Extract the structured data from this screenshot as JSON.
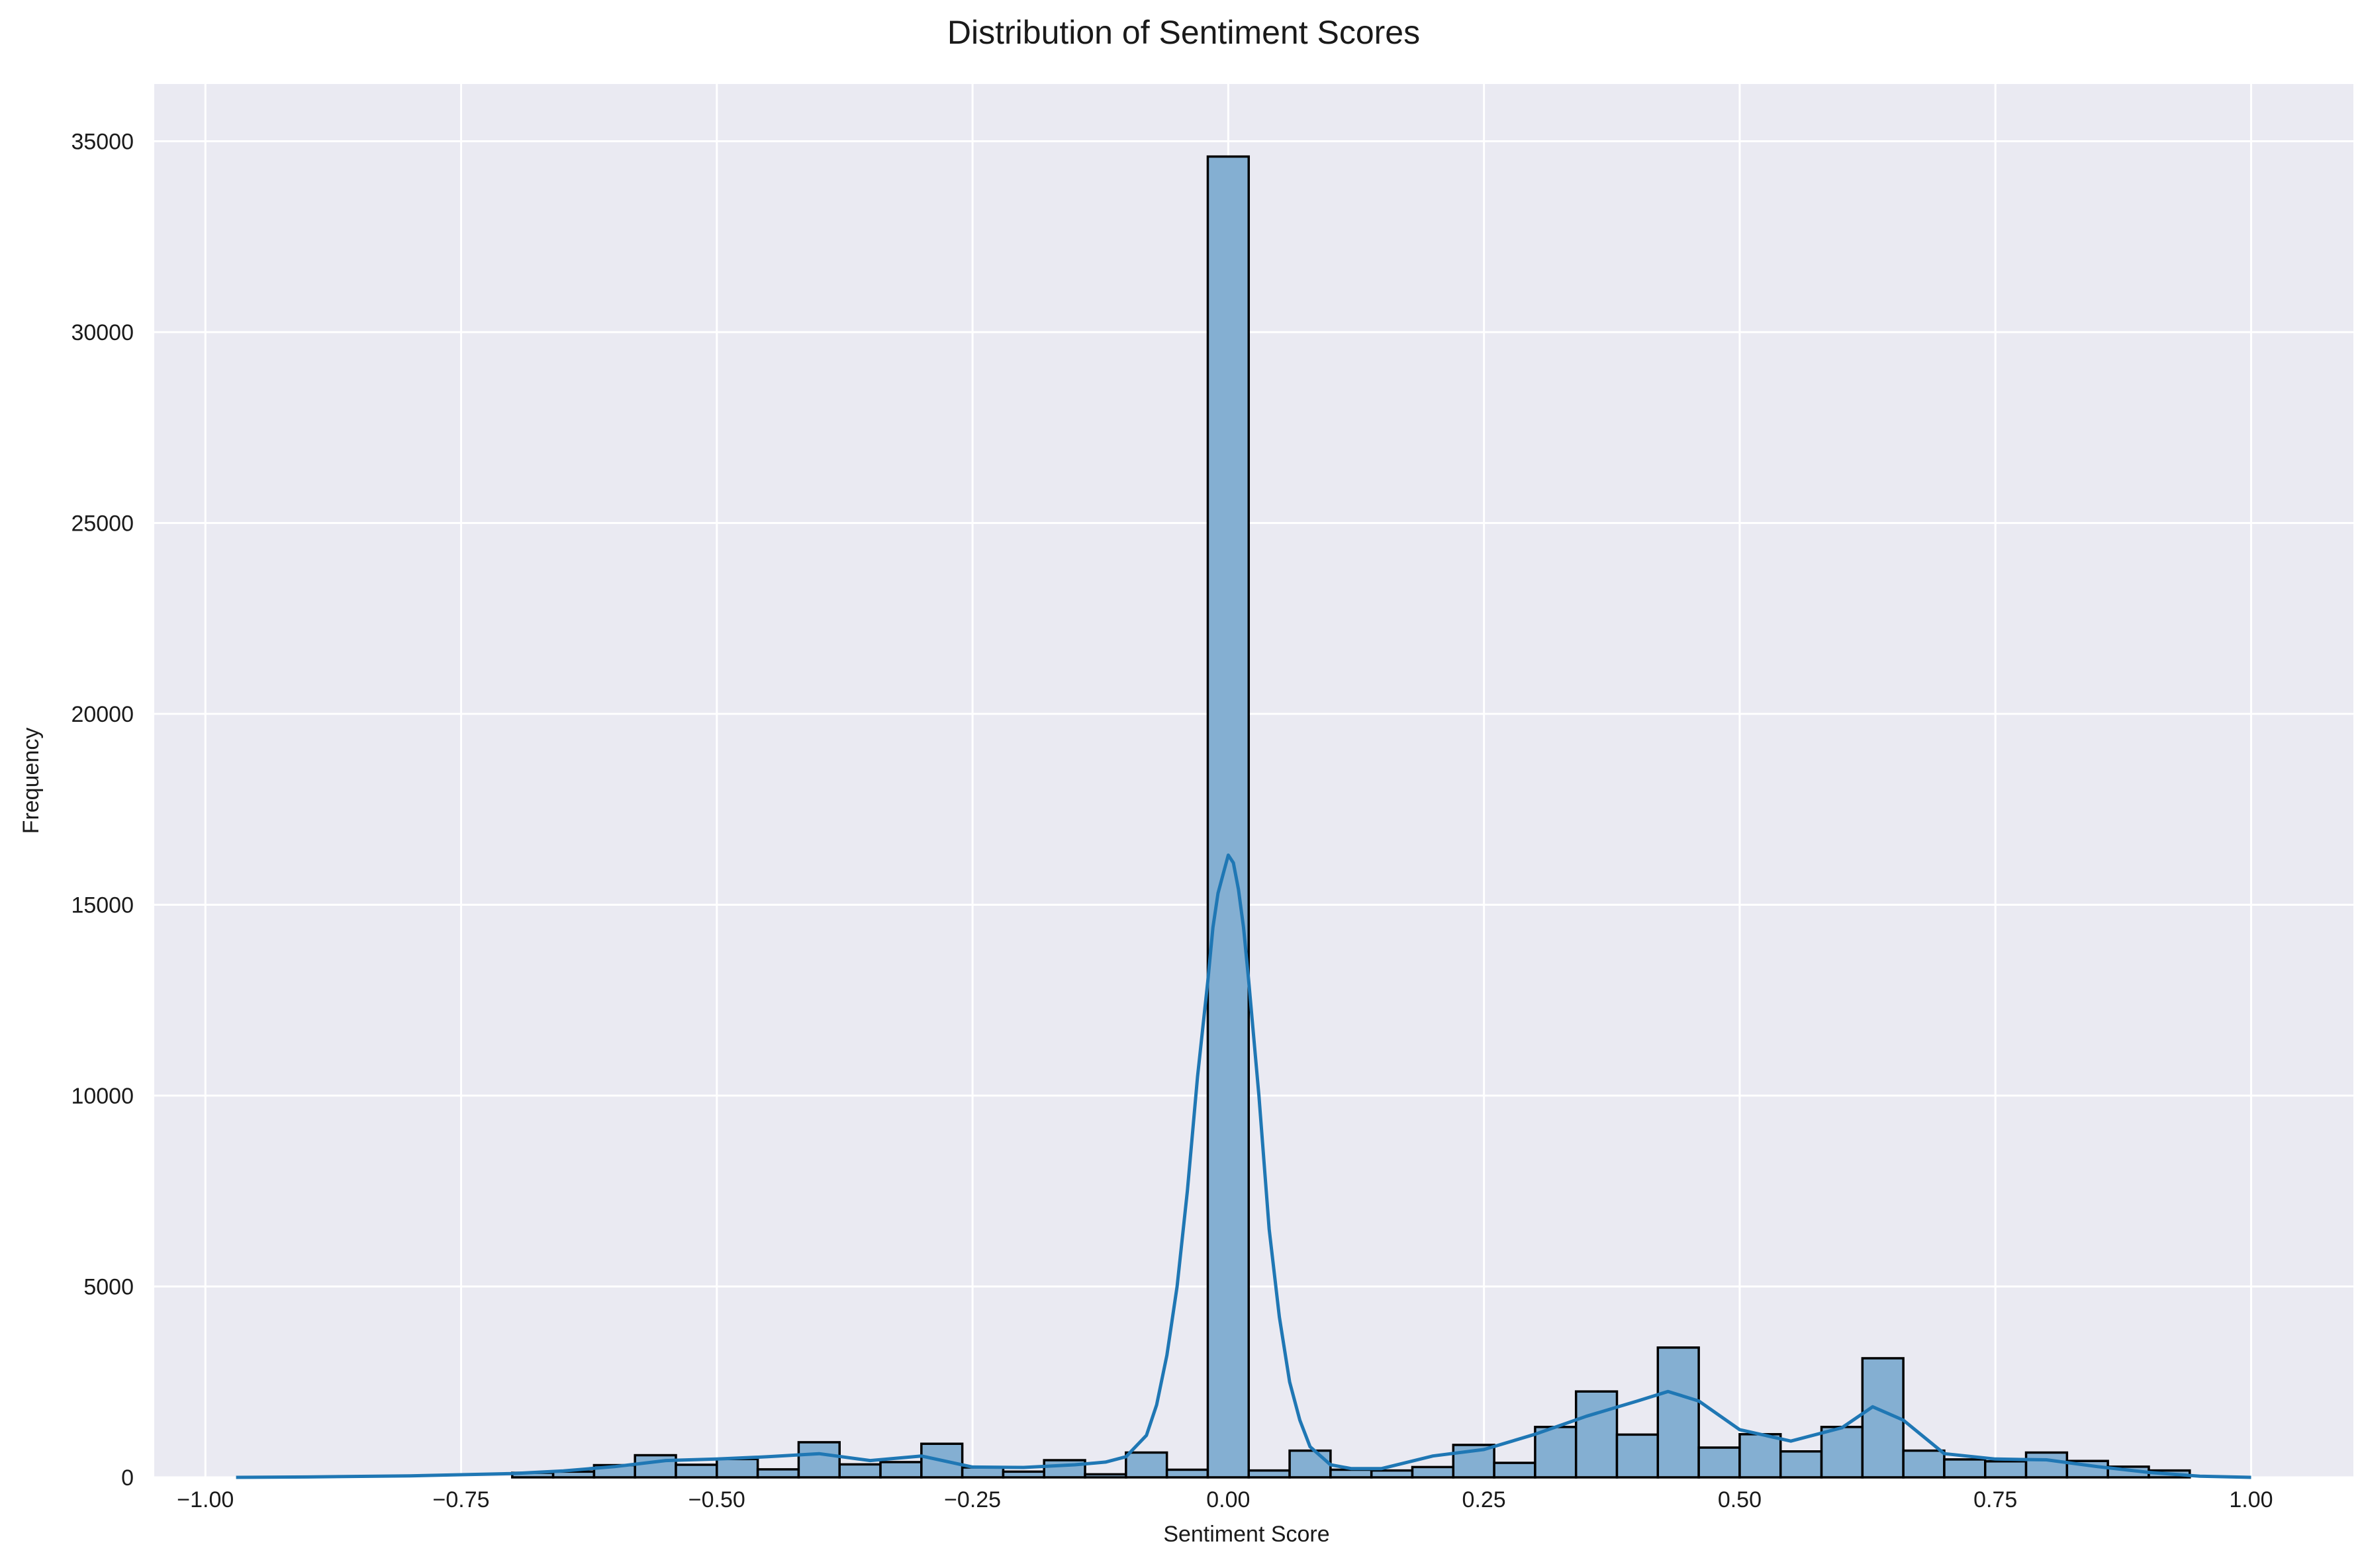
{
  "chart_data": {
    "type": "histogram",
    "title": "Distribution of Sentiment Scores",
    "xlabel": "Sentiment Score",
    "ylabel": "Frequency",
    "xlim": [
      -1.05,
      1.1
    ],
    "ylim": [
      0,
      36500
    ],
    "grid": true,
    "bin_edges": [
      -0.7,
      -0.66,
      -0.62,
      -0.58,
      -0.54,
      -0.5,
      -0.46,
      -0.42,
      -0.38,
      -0.34,
      -0.3,
      -0.26,
      -0.22,
      -0.18,
      -0.14,
      -0.1,
      -0.06,
      -0.02,
      0.02,
      0.06,
      0.1,
      0.14,
      0.18,
      0.22,
      0.26,
      0.3,
      0.34,
      0.38,
      0.42,
      0.46,
      0.5,
      0.54,
      0.58,
      0.62,
      0.66,
      0.7,
      0.74,
      0.78,
      0.82,
      0.86,
      0.9,
      0.94
    ],
    "counts": [
      120,
      150,
      320,
      580,
      330,
      480,
      210,
      920,
      340,
      400,
      880,
      260,
      150,
      450,
      80,
      650,
      200,
      34600,
      180,
      700,
      200,
      180,
      270,
      850,
      380,
      1320,
      2250,
      1120,
      3400,
      780,
      1130,
      680,
      1320,
      3120,
      700,
      470,
      420,
      650,
      430,
      280,
      180
    ],
    "kde": {
      "x": [
        -0.97,
        -0.9,
        -0.8,
        -0.7,
        -0.65,
        -0.6,
        -0.55,
        -0.5,
        -0.45,
        -0.4,
        -0.35,
        -0.3,
        -0.25,
        -0.2,
        -0.15,
        -0.12,
        -0.1,
        -0.08,
        -0.07,
        -0.06,
        -0.05,
        -0.04,
        -0.03,
        -0.02,
        -0.015,
        -0.01,
        -0.005,
        0.0,
        0.005,
        0.01,
        0.015,
        0.02,
        0.03,
        0.04,
        0.05,
        0.06,
        0.07,
        0.08,
        0.1,
        0.12,
        0.15,
        0.2,
        0.25,
        0.3,
        0.35,
        0.4,
        0.43,
        0.46,
        0.5,
        0.55,
        0.6,
        0.63,
        0.66,
        0.7,
        0.75,
        0.8,
        0.85,
        0.9,
        0.95,
        1.0
      ],
      "y": [
        0,
        10,
        40,
        100,
        170,
        280,
        440,
        480,
        540,
        620,
        440,
        560,
        270,
        260,
        330,
        400,
        540,
        1100,
        1900,
        3200,
        5000,
        7500,
        10500,
        13000,
        14400,
        15300,
        15800,
        16300,
        16100,
        15400,
        14400,
        13000,
        10000,
        6500,
        4200,
        2500,
        1500,
        800,
        330,
        230,
        230,
        560,
        730,
        1130,
        1600,
        2000,
        2250,
        2000,
        1250,
        950,
        1300,
        1850,
        1500,
        620,
        480,
        460,
        280,
        130,
        30,
        0
      ]
    },
    "xticks": [
      "−1.00",
      "−0.75",
      "−0.50",
      "−0.25",
      "0.00",
      "0.25",
      "0.50",
      "0.75",
      "1.00"
    ],
    "xtick_values": [
      -1.0,
      -0.75,
      -0.5,
      -0.25,
      0.0,
      0.25,
      0.5,
      0.75,
      1.0
    ],
    "yticks": [
      "0",
      "5000",
      "10000",
      "15000",
      "20000",
      "25000",
      "30000",
      "35000"
    ],
    "ytick_values": [
      0,
      5000,
      10000,
      15000,
      20000,
      25000,
      30000,
      35000
    ],
    "colors": {
      "bar_fill": "#84afd2",
      "bar_edge": "#000000",
      "kde_line": "#1f77b4",
      "plot_background": "#eaeaf2",
      "grid": "#ffffff"
    }
  }
}
